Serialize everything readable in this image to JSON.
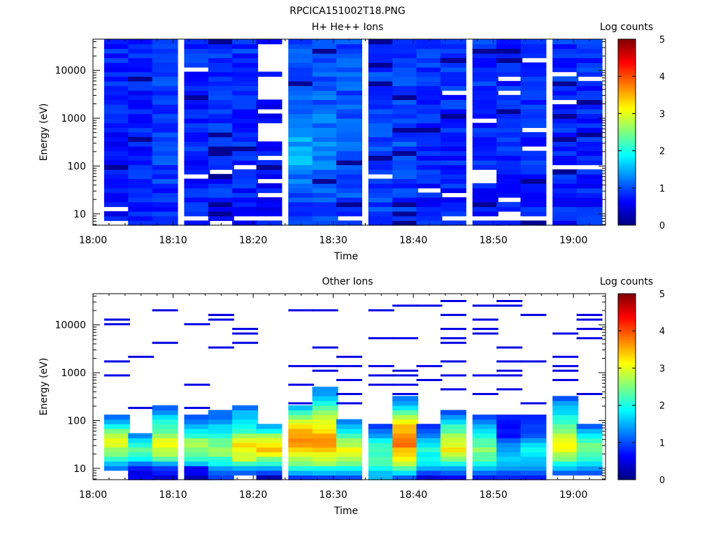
{
  "figure": {
    "title": "RPCICA151002T18.PNG"
  },
  "colorscale": [
    "#00007f",
    "#0000ff",
    "#007fff",
    "#00ffff",
    "#7fff7f",
    "#ffff00",
    "#ff7f00",
    "#ff0000",
    "#7f0000"
  ],
  "chart_data": [
    {
      "type": "heatmap",
      "title": "H+ He++ Ions",
      "xlabel": "Time",
      "ylabel": "Energy (eV)",
      "x_ticks": [
        "18:00",
        "18:10",
        "18:20",
        "18:30",
        "18:40",
        "18:50",
        "19:00"
      ],
      "y_scale": "log",
      "y_ticks": [
        "10",
        "100",
        "1000",
        "10000"
      ],
      "colorbar": {
        "label": "Log counts",
        "ticks": [
          "0",
          "1",
          "2",
          "3",
          "4",
          "5"
        ],
        "range": [
          0,
          5
        ]
      },
      "bins": 40,
      "columns": [
        {
          "time": "18:03",
          "seed": 11,
          "white": [
            0,
            3
          ],
          "profile": [
            [
              5,
              0.65
            ],
            [
              40,
              0.85
            ]
          ]
        },
        {
          "time": "18:06",
          "seed": 12,
          "white": [],
          "profile": [
            [
              5,
              0.75
            ],
            [
              40,
              0.8
            ]
          ]
        },
        {
          "time": "18:09",
          "seed": 13,
          "white": [],
          "profile": [
            [
              5,
              0.8
            ],
            [
              16,
              1.0
            ],
            [
              40,
              0.85
            ]
          ]
        },
        {
          "time": "18:13",
          "seed": 14,
          "white": [
            1,
            10,
            33
          ],
          "profile": [
            [
              5,
              0.75
            ],
            [
              40,
              0.85
            ]
          ]
        },
        {
          "time": "18:16",
          "seed": 15,
          "white": [
            0,
            11
          ],
          "profile": [
            [
              5,
              0.8
            ],
            [
              40,
              0.85
            ]
          ]
        },
        {
          "time": "18:19",
          "seed": 16,
          "white": [
            1,
            12
          ],
          "profile": [
            [
              5,
              0.75
            ],
            [
              40,
              0.85
            ]
          ]
        },
        {
          "time": "18:22",
          "seed": 17,
          "white": [
            1,
            6,
            9,
            14,
            18,
            19,
            20,
            21,
            24,
            27,
            28,
            29,
            30,
            31,
            33,
            34,
            35,
            36,
            37,
            38
          ],
          "profile": [
            [
              5,
              0.65
            ],
            [
              40,
              0.7
            ]
          ]
        },
        {
          "time": "18:26",
          "seed": 18,
          "white": [],
          "profile": [
            [
              5,
              0.9
            ],
            [
              15,
              1.55
            ],
            [
              25,
              1.05
            ],
            [
              40,
              0.95
            ]
          ]
        },
        {
          "time": "18:29",
          "seed": 19,
          "white": [],
          "profile": [
            [
              5,
              0.95
            ],
            [
              14,
              1.35
            ],
            [
              25,
              1.1
            ],
            [
              40,
              0.95
            ]
          ]
        },
        {
          "time": "18:32",
          "seed": 20,
          "white": [
            1
          ],
          "profile": [
            [
              5,
              0.95
            ],
            [
              14,
              1.1
            ],
            [
              40,
              0.95
            ]
          ]
        },
        {
          "time": "18:36",
          "seed": 21,
          "white": [
            10
          ],
          "profile": [
            [
              5,
              0.9
            ],
            [
              40,
              0.95
            ]
          ]
        },
        {
          "time": "18:39",
          "seed": 22,
          "white": [],
          "profile": [
            [
              5,
              0.9
            ],
            [
              14,
              1.0
            ],
            [
              40,
              0.95
            ]
          ]
        },
        {
          "time": "18:42",
          "seed": 23,
          "white": [
            7
          ],
          "profile": [
            [
              5,
              0.75
            ],
            [
              40,
              0.85
            ]
          ]
        },
        {
          "time": "18:45",
          "seed": 24,
          "white": [
            1,
            6,
            28
          ],
          "profile": [
            [
              5,
              0.75
            ],
            [
              40,
              0.85
            ]
          ]
        },
        {
          "time": "18:49",
          "seed": 25,
          "white": [
            1,
            9,
            10,
            11,
            22
          ],
          "profile": [
            [
              5,
              0.75
            ],
            [
              40,
              0.85
            ]
          ]
        },
        {
          "time": "18:52",
          "seed": 26,
          "white": [
            1,
            2,
            5,
            28,
            31
          ],
          "profile": [
            [
              5,
              0.8
            ],
            [
              40,
              0.85
            ]
          ]
        },
        {
          "time": "18:55",
          "seed": 27,
          "white": [
            1,
            16,
            20,
            35
          ],
          "profile": [
            [
              5,
              0.8
            ],
            [
              40,
              0.85
            ]
          ]
        },
        {
          "time": "18:59",
          "seed": 28,
          "white": [
            12,
            26,
            32
          ],
          "profile": [
            [
              5,
              0.75
            ],
            [
              40,
              0.85
            ]
          ]
        },
        {
          "time": "19:02",
          "seed": 29,
          "white": [
            12,
            31
          ],
          "profile": [
            [
              5,
              0.75
            ],
            [
              40,
              0.85
            ]
          ]
        }
      ]
    },
    {
      "type": "heatmap",
      "title": "Other Ions",
      "xlabel": "Time",
      "ylabel": "Energy (eV)",
      "x_ticks": [
        "18:00",
        "18:10",
        "18:20",
        "18:30",
        "18:40",
        "18:50",
        "19:00"
      ],
      "y_scale": "log",
      "y_ticks": [
        "10",
        "100",
        "1000",
        "10000"
      ],
      "colorbar": {
        "label": "Log counts",
        "ticks": [
          "0",
          "1",
          "2",
          "3",
          "4",
          "5"
        ],
        "range": [
          0,
          5
        ]
      },
      "bins": 40,
      "columns": [
        {
          "time": "18:03",
          "seed": 31,
          "filled": [
            2,
            13
          ],
          "profile": [
            [
              2,
              1.2
            ],
            [
              5,
              2.6
            ],
            [
              8,
              3.0
            ],
            [
              11,
              2.0
            ],
            [
              13,
              1.2
            ]
          ],
          "lines": [
            22,
            25,
            33,
            34
          ]
        },
        {
          "time": "18:06",
          "seed": 32,
          "filled": [
            0,
            9
          ],
          "profile": [
            [
              0,
              0.6
            ],
            [
              2,
              0.7
            ],
            [
              4,
              2.0
            ],
            [
              6,
              2.4
            ],
            [
              9,
              1.2
            ]
          ],
          "lines": [
            15,
            26
          ]
        },
        {
          "time": "18:09",
          "seed": 33,
          "filled": [
            0,
            15
          ],
          "profile": [
            [
              0,
              0.5
            ],
            [
              2,
              0.8
            ],
            [
              4,
              2.4
            ],
            [
              7,
              3.1
            ],
            [
              10,
              2.4
            ],
            [
              15,
              1.2
            ]
          ],
          "lines": [
            29,
            36
          ]
        },
        {
          "time": "18:13",
          "seed": 34,
          "filled": [
            0,
            13
          ],
          "profile": [
            [
              0,
              0.4
            ],
            [
              2,
              0.7
            ],
            [
              4,
              2.2
            ],
            [
              7,
              2.8
            ],
            [
              10,
              1.9
            ],
            [
              13,
              1.1
            ]
          ],
          "lines": [
            15,
            20,
            33
          ]
        },
        {
          "time": "18:16",
          "seed": 35,
          "filled": [
            0,
            14
          ],
          "profile": [
            [
              0,
              0.8
            ],
            [
              3,
              1.8
            ],
            [
              6,
              2.8
            ],
            [
              9,
              2.0
            ],
            [
              14,
              1.1
            ]
          ],
          "lines": [
            28,
            34,
            35
          ]
        },
        {
          "time": "18:19",
          "seed": 36,
          "filled": [
            1,
            15
          ],
          "profile": [
            [
              1,
              1.0
            ],
            [
              4,
              2.8
            ],
            [
              7,
              3.2
            ],
            [
              10,
              2.2
            ],
            [
              15,
              1.3
            ]
          ],
          "lines": [
            29,
            31,
            32
          ]
        },
        {
          "time": "18:22",
          "seed": 37,
          "filled": [
            0,
            11
          ],
          "profile": [
            [
              0,
              0.2
            ],
            [
              3,
              2.0
            ],
            [
              6,
              3.4
            ],
            [
              9,
              2.6
            ],
            [
              11,
              1.4
            ]
          ],
          "lines": []
        },
        {
          "time": "18:26",
          "seed": 38,
          "filled": [
            0,
            15
          ],
          "profile": [
            [
              0,
              0.9
            ],
            [
              3,
              2.4
            ],
            [
              7,
              3.6
            ],
            [
              10,
              3.6
            ],
            [
              13,
              2.6
            ],
            [
              15,
              1.6
            ]
          ],
          "lines": [
            16,
            20,
            24,
            36
          ]
        },
        {
          "time": "18:29",
          "seed": 39,
          "filled": [
            0,
            19
          ],
          "profile": [
            [
              0,
              1.0
            ],
            [
              3,
              2.6
            ],
            [
              7,
              3.7
            ],
            [
              11,
              3.2
            ],
            [
              15,
              2.2
            ],
            [
              19,
              1.3
            ]
          ],
          "lines": [
            23,
            24,
            28,
            36
          ]
        },
        {
          "time": "18:32",
          "seed": 40,
          "filled": [
            0,
            12
          ],
          "profile": [
            [
              0,
              1.1
            ],
            [
              3,
              2.4
            ],
            [
              6,
              3.2
            ],
            [
              9,
              2.2
            ],
            [
              12,
              1.2
            ]
          ],
          "lines": [
            16,
            18,
            21,
            24,
            26
          ]
        },
        {
          "time": "18:36",
          "seed": 41,
          "filled": [
            0,
            11
          ],
          "profile": [
            [
              0,
              1.4
            ],
            [
              3,
              2.2
            ],
            [
              6,
              2.3
            ],
            [
              9,
              1.5
            ],
            [
              11,
              1.0
            ]
          ],
          "lines": [
            20,
            22,
            24,
            30,
            36
          ]
        },
        {
          "time": "18:39",
          "seed": 42,
          "filled": [
            0,
            17
          ],
          "profile": [
            [
              0,
              1.0
            ],
            [
              3,
              2.8
            ],
            [
              7,
              3.8
            ],
            [
              11,
              3.4
            ],
            [
              14,
              2.2
            ],
            [
              17,
              1.2
            ]
          ],
          "lines": [
            18,
            20,
            22,
            23,
            30,
            37
          ]
        },
        {
          "time": "18:42",
          "seed": 43,
          "filled": [
            0,
            11
          ],
          "profile": [
            [
              0,
              0.4
            ],
            [
              3,
              1.8
            ],
            [
              6,
              2.0
            ],
            [
              9,
              1.3
            ],
            [
              11,
              0.9
            ]
          ],
          "lines": [
            21,
            24,
            37
          ]
        },
        {
          "time": "18:45",
          "seed": 44,
          "filled": [
            0,
            14
          ],
          "profile": [
            [
              0,
              0.6
            ],
            [
              3,
              2.0
            ],
            [
              6,
              3.2
            ],
            [
              9,
              2.6
            ],
            [
              12,
              1.8
            ],
            [
              14,
              1.0
            ]
          ],
          "lines": [
            19,
            22,
            25,
            29,
            30,
            32,
            35,
            38
          ]
        },
        {
          "time": "18:49",
          "seed": 45,
          "filled": [
            0,
            13
          ],
          "profile": [
            [
              0,
              0.8
            ],
            [
              3,
              2.0
            ],
            [
              6,
              2.6
            ],
            [
              9,
              2.0
            ],
            [
              13,
              1.1
            ]
          ],
          "lines": [
            18,
            22,
            31,
            32,
            34,
            37
          ]
        },
        {
          "time": "18:52",
          "seed": 46,
          "filled": [
            0,
            13
          ],
          "profile": [
            [
              0,
              0.9
            ],
            [
              3,
              1.6
            ],
            [
              6,
              1.4
            ],
            [
              9,
              0.8
            ],
            [
              13,
              0.7
            ]
          ],
          "lines": [
            19,
            22,
            23,
            25,
            28,
            37,
            38
          ]
        },
        {
          "time": "18:55",
          "seed": 47,
          "filled": [
            0,
            13
          ],
          "profile": [
            [
              0,
              0.6
            ],
            [
              3,
              1.6
            ],
            [
              6,
              2.0
            ],
            [
              9,
              1.0
            ],
            [
              13,
              0.8
            ]
          ],
          "lines": [
            16,
            25,
            35
          ]
        },
        {
          "time": "18:59",
          "seed": 48,
          "filled": [
            1,
            17
          ],
          "profile": [
            [
              1,
              1.0
            ],
            [
              4,
              2.6
            ],
            [
              7,
              3.2
            ],
            [
              10,
              2.6
            ],
            [
              13,
              2.0
            ],
            [
              17,
              1.1
            ]
          ],
          "lines": [
            21,
            23,
            24,
            26,
            31
          ]
        },
        {
          "time": "19:02",
          "seed": 49,
          "filled": [
            1,
            11
          ],
          "profile": [
            [
              1,
              1.0
            ],
            [
              4,
              2.2
            ],
            [
              7,
              2.6
            ],
            [
              9,
              1.8
            ],
            [
              11,
              1.1
            ]
          ],
          "lines": [
            18,
            30,
            32,
            34,
            35
          ]
        }
      ]
    }
  ]
}
